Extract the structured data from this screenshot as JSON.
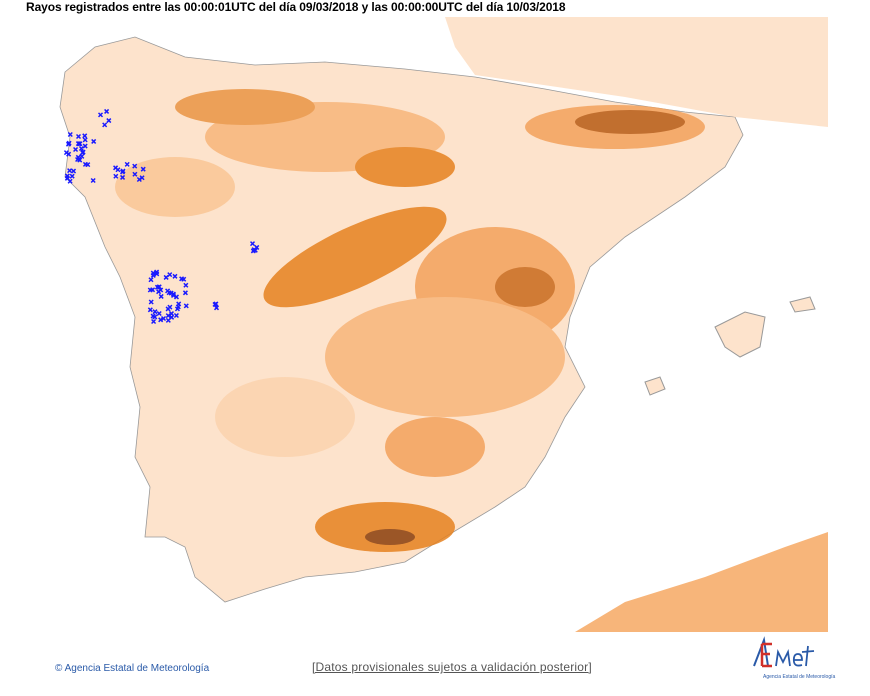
{
  "header": {
    "title": "Rayos registrados entre las 00:00:01UTC del día 09/03/2018 y las 00:00:00UTC del día 10/03/2018"
  },
  "footer": {
    "copyright": "© Agencia Estatal de Meteorología",
    "disclaimer": "[Datos provisionales sujetos a validación posterior]",
    "logo_text": "AEMet",
    "logo_subtitle": "Agencia Estatal de Meteorología"
  },
  "colors": {
    "sea": "#ffffff",
    "lowland": "#fde3cc",
    "mid": "#f7b57a",
    "high": "#e5811f",
    "peak": "#8a3d0a",
    "lightning": "#1a1aff",
    "borders": "#8a8a8a"
  }
}
